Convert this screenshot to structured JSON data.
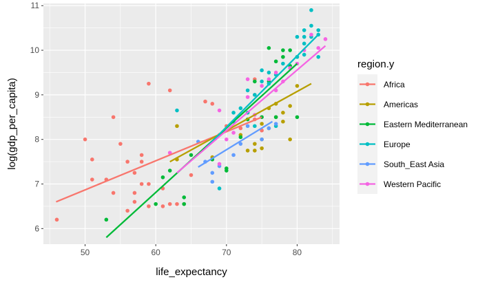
{
  "chart_data": {
    "type": "scatter",
    "xlabel": "life_expectancy",
    "ylabel": "log(gdp_per_capita)",
    "xlim": [
      44.1,
      86.0
    ],
    "ylim": [
      5.65,
      11.05
    ],
    "x_ticks": [
      50,
      60,
      70,
      80
    ],
    "y_ticks": [
      6,
      7,
      8,
      9,
      10,
      11
    ],
    "grid": true,
    "legend": {
      "title": "region.y",
      "position": "right"
    },
    "series": [
      {
        "name": "Africa",
        "color": "#F8766D",
        "points": [
          [
            46,
            6.2
          ],
          [
            50,
            8.0
          ],
          [
            51,
            7.55
          ],
          [
            51,
            7.1
          ],
          [
            53,
            7.1
          ],
          [
            54,
            8.5
          ],
          [
            54,
            6.8
          ],
          [
            55,
            7.9
          ],
          [
            56,
            7.5
          ],
          [
            56,
            6.4
          ],
          [
            57,
            6.8
          ],
          [
            57,
            6.6
          ],
          [
            57,
            7.25
          ],
          [
            58,
            7.65
          ],
          [
            58,
            7.5
          ],
          [
            58,
            7.0
          ],
          [
            59,
            9.25
          ],
          [
            59,
            7.0
          ],
          [
            59,
            6.5
          ],
          [
            61,
            6.5
          ],
          [
            61,
            6.9
          ],
          [
            62,
            9.1
          ],
          [
            62,
            6.55
          ],
          [
            62,
            7.7
          ],
          [
            63,
            6.55
          ],
          [
            64,
            6.55
          ],
          [
            65,
            7.2
          ],
          [
            67,
            8.85
          ],
          [
            68,
            8.8
          ],
          [
            69,
            8.1
          ],
          [
            70,
            8.3
          ],
          [
            72,
            8.25
          ],
          [
            73,
            8.6
          ],
          [
            74,
            9.35
          ],
          [
            74,
            9.0
          ],
          [
            74,
            8.45
          ],
          [
            75,
            8.2
          ]
        ],
        "fit": [
          [
            45.9,
            6.6
          ],
          [
            75,
            8.5
          ]
        ]
      },
      {
        "name": "Americas",
        "color": "#B79F00",
        "points": [
          [
            63,
            8.3
          ],
          [
            63,
            7.55
          ],
          [
            68,
            7.6
          ],
          [
            72,
            8.1
          ],
          [
            73,
            7.75
          ],
          [
            74,
            7.9
          ],
          [
            75,
            8.0
          ],
          [
            75,
            8.35
          ],
          [
            76,
            8.25
          ],
          [
            76,
            8.7
          ],
          [
            77,
            8.8
          ],
          [
            77,
            8.5
          ],
          [
            78,
            8.4
          ],
          [
            78,
            8.6
          ],
          [
            79,
            8.75
          ],
          [
            79,
            8.0
          ],
          [
            80,
            9.2
          ],
          [
            80,
            9.85
          ],
          [
            74,
            7.75
          ],
          [
            75,
            7.8
          ]
        ],
        "fit": [
          [
            62,
            7.5
          ],
          [
            82,
            9.25
          ]
        ]
      },
      {
        "name": "Eastern Mediterranean",
        "color": "#00BA38",
        "points": [
          [
            53,
            6.2
          ],
          [
            60,
            6.55
          ],
          [
            61,
            7.15
          ],
          [
            62,
            7.3
          ],
          [
            64,
            6.55
          ],
          [
            64,
            6.7
          ],
          [
            65,
            7.65
          ],
          [
            68,
            7.55
          ],
          [
            70,
            7.35
          ],
          [
            70,
            7.3
          ],
          [
            72,
            8.05
          ],
          [
            73,
            8.45
          ],
          [
            74,
            9.3
          ],
          [
            75,
            8.5
          ],
          [
            76,
            9.3
          ],
          [
            76,
            10.05
          ],
          [
            77,
            9.75
          ],
          [
            77,
            8.5
          ],
          [
            78,
            9.85
          ],
          [
            78,
            10.0
          ],
          [
            79,
            10.0
          ],
          [
            79,
            9.65
          ],
          [
            80,
            8.5
          ]
        ],
        "fit": [
          [
            53,
            5.8
          ],
          [
            80,
            9.7
          ]
        ]
      },
      {
        "name": "Europe",
        "color": "#00BFC4",
        "points": [
          [
            63,
            8.65
          ],
          [
            69,
            6.9
          ],
          [
            71,
            8.4
          ],
          [
            71,
            8.6
          ],
          [
            72,
            8.7
          ],
          [
            73,
            9.1
          ],
          [
            73,
            8.6
          ],
          [
            74,
            8.3
          ],
          [
            74,
            9.0
          ],
          [
            75,
            9.3
          ],
          [
            75,
            9.55
          ],
          [
            76,
            9.5
          ],
          [
            76,
            9.25
          ],
          [
            77,
            9.45
          ],
          [
            77,
            8.3
          ],
          [
            78,
            9.7
          ],
          [
            80,
            10.3
          ],
          [
            80,
            9.85
          ],
          [
            81,
            10.3
          ],
          [
            81,
            10.15
          ],
          [
            81,
            10.45
          ],
          [
            82,
            10.9
          ],
          [
            82,
            10.55
          ],
          [
            82,
            10.3
          ],
          [
            83,
            10.45
          ],
          [
            83,
            10.35
          ],
          [
            83,
            9.85
          ],
          [
            81,
            9.9
          ]
        ],
        "fit": [
          [
            67,
            7.8
          ],
          [
            83,
            10.35
          ]
        ]
      },
      {
        "name": "South_East Asia",
        "color": "#619CFF",
        "points": [
          [
            66,
            7.95
          ],
          [
            67,
            7.5
          ],
          [
            68,
            7.05
          ],
          [
            68,
            7.25
          ],
          [
            69,
            7.4
          ],
          [
            71,
            7.65
          ],
          [
            72,
            7.9
          ],
          [
            73,
            8.3
          ],
          [
            75,
            8.0
          ],
          [
            76,
            8.25
          ],
          [
            77,
            8.35
          ]
        ],
        "fit": [
          [
            66,
            7.38
          ],
          [
            76.5,
            8.4
          ]
        ]
      },
      {
        "name": "Western Pacific",
        "color": "#F564E3",
        "points": [
          [
            62,
            7.7
          ],
          [
            69,
            8.65
          ],
          [
            69,
            7.45
          ],
          [
            70,
            8.0
          ],
          [
            71,
            8.15
          ],
          [
            73,
            9.35
          ],
          [
            73,
            8.95
          ],
          [
            74,
            8.55
          ],
          [
            75,
            9.2
          ],
          [
            76,
            9.35
          ],
          [
            77,
            9.1
          ],
          [
            77,
            9.5
          ],
          [
            78,
            9.3
          ],
          [
            79,
            9.6
          ],
          [
            80,
            9.7
          ],
          [
            81,
            10.0
          ],
          [
            82,
            10.35
          ],
          [
            83,
            10.05
          ],
          [
            84,
            10.25
          ]
        ],
        "fit": [
          [
            63,
            7.25
          ],
          [
            84,
            10.1
          ]
        ]
      }
    ]
  }
}
